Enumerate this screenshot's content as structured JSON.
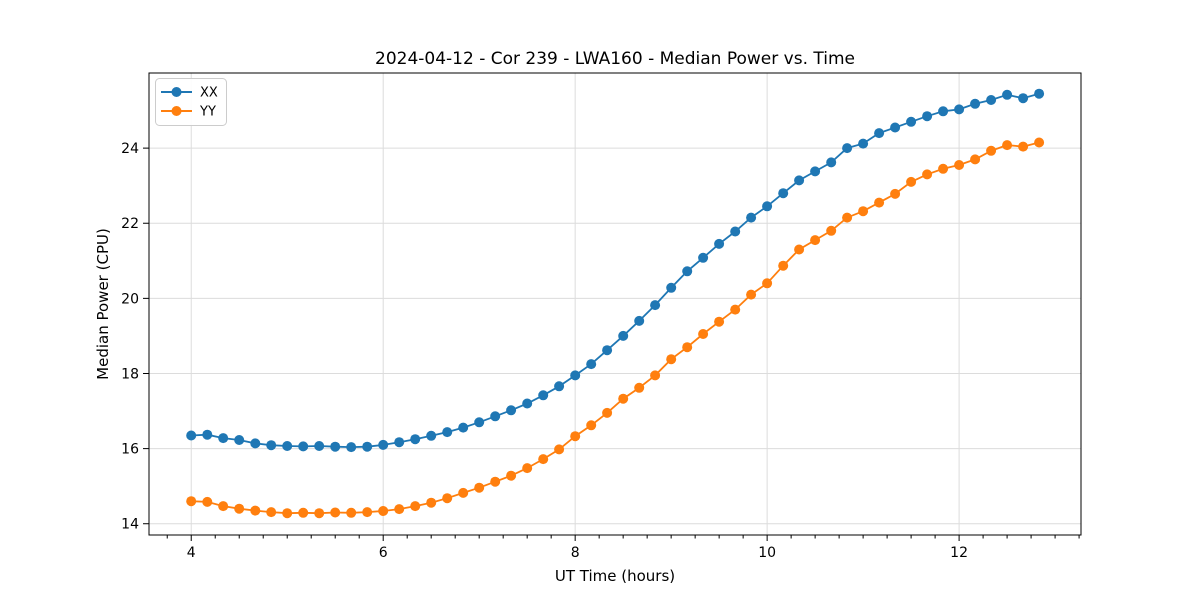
{
  "chart_data": {
    "type": "line",
    "title": "2024-04-12 - Cor 239 - LWA160 - Median Power vs. Time",
    "xlabel": "UT Time (hours)",
    "ylabel": "Median Power (CPU)",
    "xlim": [
      3.56,
      13.27
    ],
    "ylim": [
      13.7,
      26.0
    ],
    "xticks": [
      4,
      6,
      8,
      10,
      12
    ],
    "yticks": [
      14,
      16,
      18,
      20,
      22,
      24
    ],
    "x_minor_tick_step": 0.25,
    "grid": true,
    "legend_position": "upper left",
    "marker": "circle",
    "x": [
      4.0,
      4.167,
      4.333,
      4.5,
      4.667,
      4.833,
      5.0,
      5.167,
      5.333,
      5.5,
      5.667,
      5.833,
      6.0,
      6.167,
      6.333,
      6.5,
      6.667,
      6.833,
      7.0,
      7.167,
      7.333,
      7.5,
      7.667,
      7.833,
      8.0,
      8.167,
      8.333,
      8.5,
      8.667,
      8.833,
      9.0,
      9.167,
      9.333,
      9.5,
      9.667,
      9.833,
      10.0,
      10.167,
      10.333,
      10.5,
      10.667,
      10.833,
      11.0,
      11.167,
      11.333,
      11.5,
      11.667,
      11.833,
      12.0,
      12.167,
      12.333,
      12.5,
      12.667,
      12.833
    ],
    "series": [
      {
        "name": "XX",
        "color": "#1f77b4",
        "values": [
          16.35,
          16.37,
          16.28,
          16.23,
          16.14,
          16.09,
          16.07,
          16.06,
          16.07,
          16.05,
          16.04,
          16.05,
          16.1,
          16.17,
          16.25,
          16.34,
          16.44,
          16.56,
          16.7,
          16.86,
          17.02,
          17.2,
          17.42,
          17.66,
          17.95,
          18.25,
          18.62,
          19.0,
          19.4,
          19.82,
          20.28,
          20.72,
          21.08,
          21.45,
          21.78,
          22.15,
          22.45,
          22.8,
          23.14,
          23.38,
          23.62,
          24.0,
          24.12,
          24.4,
          24.55,
          24.7,
          24.85,
          24.98,
          25.03,
          25.18,
          25.28,
          25.42,
          25.33,
          25.45
        ]
      },
      {
        "name": "YY",
        "color": "#ff7f0e",
        "values": [
          14.6,
          14.58,
          14.47,
          14.4,
          14.35,
          14.31,
          14.28,
          14.29,
          14.28,
          14.3,
          14.29,
          14.31,
          14.34,
          14.39,
          14.47,
          14.56,
          14.68,
          14.82,
          14.96,
          15.12,
          15.28,
          15.48,
          15.72,
          15.98,
          16.33,
          16.62,
          16.95,
          17.33,
          17.62,
          17.95,
          18.38,
          18.7,
          19.05,
          19.38,
          19.7,
          20.1,
          20.4,
          20.87,
          21.3,
          21.55,
          21.8,
          22.15,
          22.32,
          22.55,
          22.78,
          23.1,
          23.3,
          23.45,
          23.55,
          23.7,
          23.93,
          24.08,
          24.04,
          24.15
        ]
      }
    ],
    "styles": {
      "grid_color": "#dcdcdc",
      "spine_color": "#000000",
      "background": "#ffffff",
      "legend_border": "#cccccc"
    }
  }
}
